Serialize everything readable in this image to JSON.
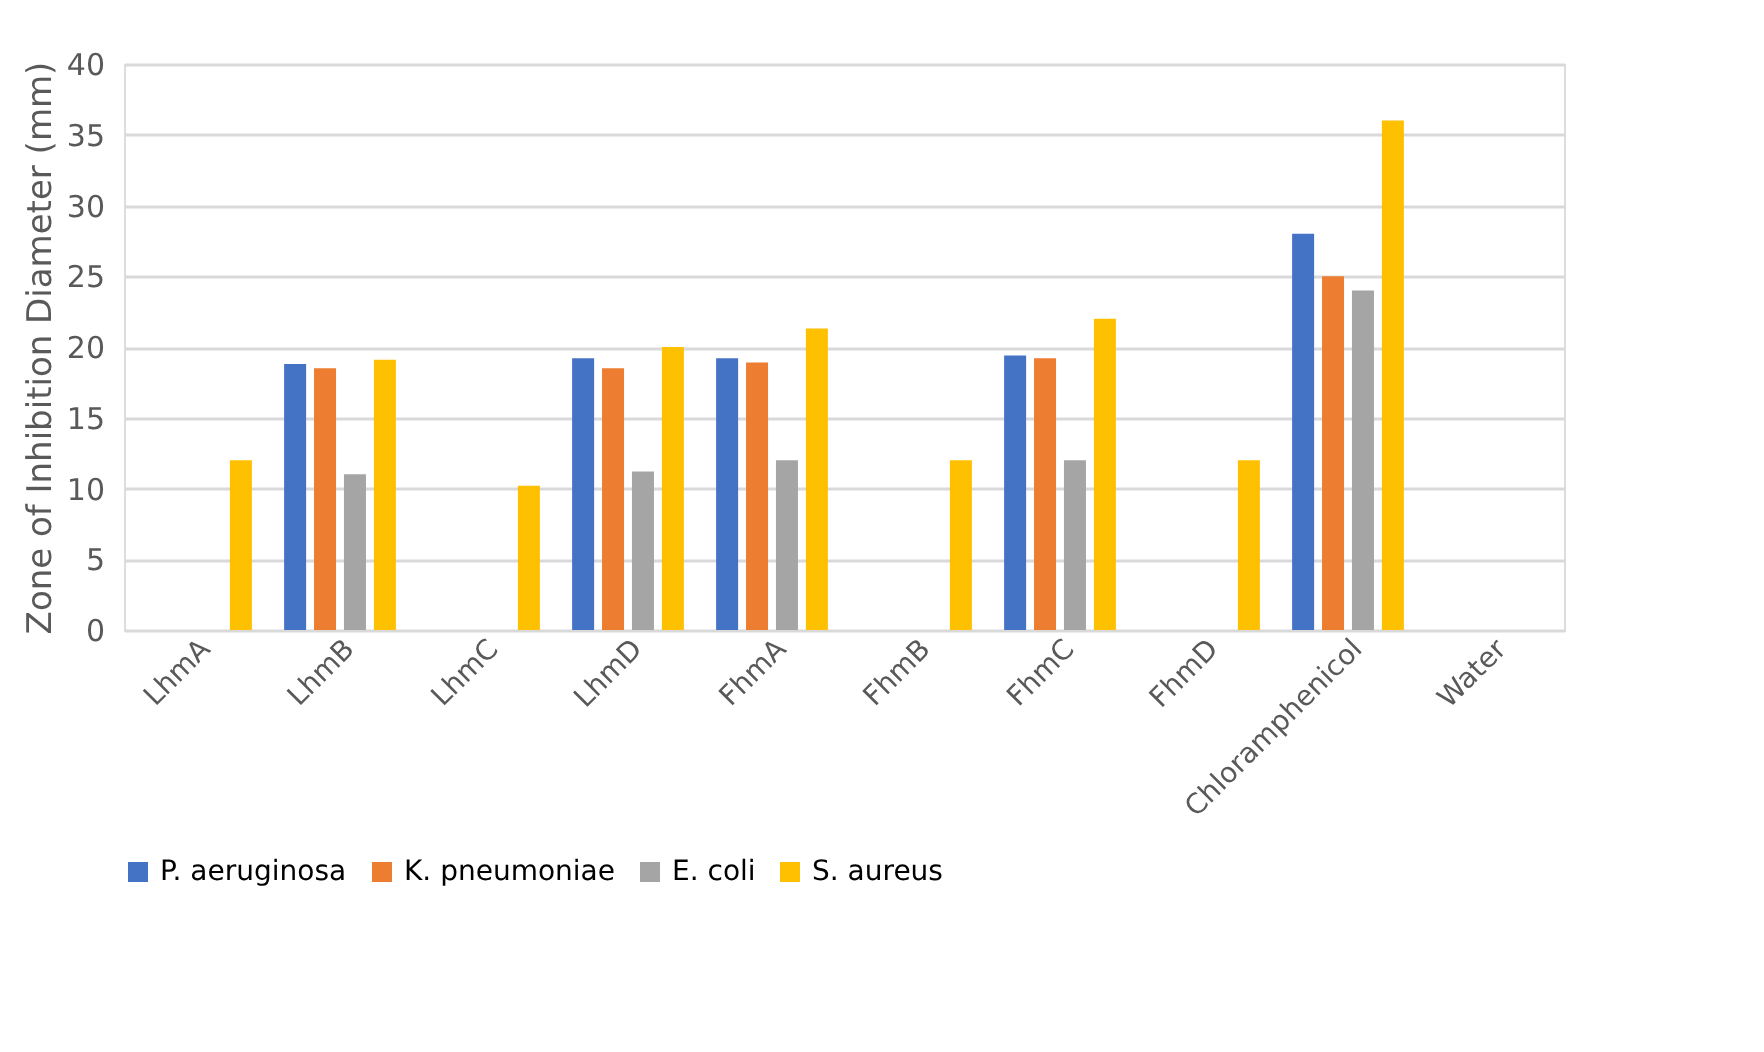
{
  "chart_data": {
    "type": "bar",
    "ylabel": "Zone of Inhibition Diameter (mm)",
    "categories": [
      "LhmA",
      "LhmB",
      "LhmC",
      "LhmD",
      "FhmA",
      "FhmB",
      "FhmC",
      "FhmD",
      "Chloramphenicol",
      "Water"
    ],
    "series": [
      {
        "name": "P. aeruginosa",
        "color": "#4472c4",
        "values": [
          0,
          18.8,
          0,
          19.2,
          19.2,
          0,
          19.4,
          0,
          28,
          0
        ]
      },
      {
        "name": "K. pneumoniae",
        "color": "#ed7d31",
        "values": [
          0,
          18.5,
          0,
          18.5,
          18.9,
          0,
          19.2,
          0,
          25,
          0
        ]
      },
      {
        "name": "E. coli",
        "color": "#a5a5a5",
        "values": [
          0,
          11,
          0,
          11.2,
          12,
          0,
          12,
          0,
          24,
          0
        ]
      },
      {
        "name": "S. aureus",
        "color": "#ffc000",
        "values": [
          12,
          19.1,
          10.2,
          20,
          21.3,
          12,
          22,
          12,
          36,
          0
        ]
      }
    ],
    "ylim": [
      0,
      40
    ],
    "yticks": [
      0,
      5,
      10,
      15,
      20,
      25,
      30,
      35,
      40
    ],
    "grid": "y",
    "legend": "bottom"
  }
}
